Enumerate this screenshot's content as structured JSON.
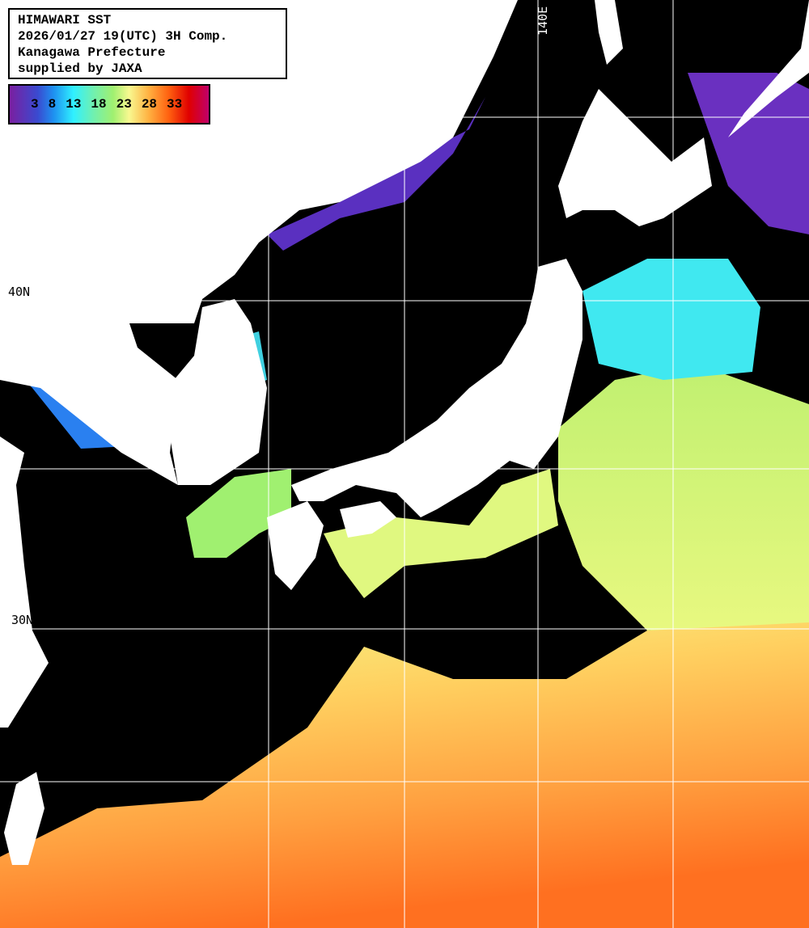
{
  "info": {
    "title": "HIMAWARI SST",
    "datetime": "2026/01/27 19(UTC) 3H Comp.",
    "region": "Kanagawa Prefecture",
    "credit": "supplied by JAXA"
  },
  "colorbar": {
    "ticks": [
      "3",
      "8",
      "13",
      "18",
      "23",
      "28",
      "33"
    ],
    "colors": [
      "#7a1fa0",
      "#3a4ad0",
      "#1e90f0",
      "#30f0ff",
      "#70f0b0",
      "#a0f070",
      "#f8f890",
      "#ffb040",
      "#ff6010",
      "#e00000",
      "#c0006a"
    ]
  },
  "grid_labels": {
    "lat_40": "40N",
    "lat_30": "30N",
    "lon_140": "140E"
  },
  "colors": {
    "land": "#ffffff",
    "no_data": "#000000",
    "grid": "#ffffff"
  }
}
